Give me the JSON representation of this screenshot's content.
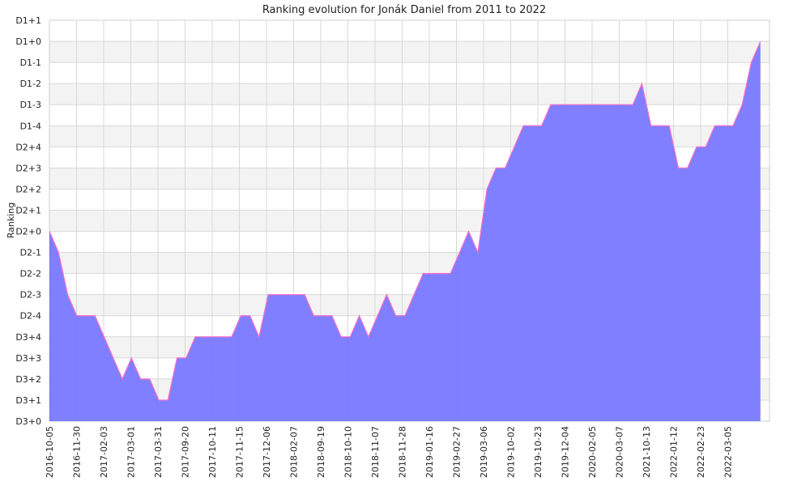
{
  "chart_data": {
    "type": "area",
    "title": "Ranking evolution for Jonák Daniel from 2011 to 2022",
    "xlabel": "",
    "ylabel": "Ranking",
    "y_levels": [
      "D3+0",
      "D3+1",
      "D3+2",
      "D3+3",
      "D3+4",
      "D2-4",
      "D2-3",
      "D2-2",
      "D2-1",
      "D2+0",
      "D2+1",
      "D2+2",
      "D2+3",
      "D2+4",
      "D1-4",
      "D1-3",
      "D1-2",
      "D1-1",
      "D1+0",
      "D1+1"
    ],
    "x_ticks": [
      "2016-10-05",
      "2016-11-30",
      "2017-02-03",
      "2017-03-01",
      "2017-03-31",
      "2017-09-20",
      "2017-10-11",
      "2017-11-15",
      "2017-12-06",
      "2018-02-07",
      "2018-09-19",
      "2018-10-10",
      "2018-11-07",
      "2018-11-28",
      "2019-01-16",
      "2019-02-27",
      "2019-03-06",
      "2019-10-02",
      "2019-10-23",
      "2019-12-04",
      "2020-02-05",
      "2020-03-07",
      "2021-10-13",
      "2022-01-12",
      "2022-02-23",
      "2022-03-05"
    ],
    "x_range": [
      0,
      79
    ],
    "grid": true,
    "legend": "none",
    "fill_color": "#7878ff",
    "line_color": "#ff6ec7",
    "points": [
      {
        "x": 0,
        "y": 9
      },
      {
        "x": 1,
        "y": 8
      },
      {
        "x": 2,
        "y": 6
      },
      {
        "x": 3,
        "y": 5
      },
      {
        "x": 4,
        "y": 5
      },
      {
        "x": 5,
        "y": 5
      },
      {
        "x": 6,
        "y": 4
      },
      {
        "x": 7,
        "y": 3
      },
      {
        "x": 8,
        "y": 2
      },
      {
        "x": 9,
        "y": 3
      },
      {
        "x": 10,
        "y": 2
      },
      {
        "x": 11,
        "y": 2
      },
      {
        "x": 12,
        "y": 1
      },
      {
        "x": 13,
        "y": 1
      },
      {
        "x": 14,
        "y": 3
      },
      {
        "x": 15,
        "y": 3
      },
      {
        "x": 16,
        "y": 4
      },
      {
        "x": 17,
        "y": 4
      },
      {
        "x": 18,
        "y": 4
      },
      {
        "x": 19,
        "y": 4
      },
      {
        "x": 20,
        "y": 4
      },
      {
        "x": 21,
        "y": 5
      },
      {
        "x": 22,
        "y": 5
      },
      {
        "x": 23,
        "y": 4
      },
      {
        "x": 24,
        "y": 6
      },
      {
        "x": 25,
        "y": 6
      },
      {
        "x": 26,
        "y": 6
      },
      {
        "x": 27,
        "y": 6
      },
      {
        "x": 28,
        "y": 6
      },
      {
        "x": 29,
        "y": 5
      },
      {
        "x": 30,
        "y": 5
      },
      {
        "x": 31,
        "y": 5
      },
      {
        "x": 32,
        "y": 4
      },
      {
        "x": 33,
        "y": 4
      },
      {
        "x": 34,
        "y": 5
      },
      {
        "x": 35,
        "y": 4
      },
      {
        "x": 36,
        "y": 5
      },
      {
        "x": 37,
        "y": 6
      },
      {
        "x": 38,
        "y": 5
      },
      {
        "x": 39,
        "y": 5
      },
      {
        "x": 40,
        "y": 6
      },
      {
        "x": 41,
        "y": 7
      },
      {
        "x": 42,
        "y": 7
      },
      {
        "x": 43,
        "y": 7
      },
      {
        "x": 44,
        "y": 7
      },
      {
        "x": 45,
        "y": 8
      },
      {
        "x": 46,
        "y": 9
      },
      {
        "x": 47,
        "y": 8
      },
      {
        "x": 48,
        "y": 11
      },
      {
        "x": 49,
        "y": 12
      },
      {
        "x": 50,
        "y": 12
      },
      {
        "x": 51,
        "y": 13
      },
      {
        "x": 52,
        "y": 14
      },
      {
        "x": 53,
        "y": 14
      },
      {
        "x": 54,
        "y": 14
      },
      {
        "x": 55,
        "y": 15
      },
      {
        "x": 56,
        "y": 15
      },
      {
        "x": 57,
        "y": 15
      },
      {
        "x": 58,
        "y": 15
      },
      {
        "x": 59,
        "y": 15
      },
      {
        "x": 60,
        "y": 15
      },
      {
        "x": 61,
        "y": 15
      },
      {
        "x": 62,
        "y": 15
      },
      {
        "x": 63,
        "y": 15
      },
      {
        "x": 64,
        "y": 15
      },
      {
        "x": 65,
        "y": 16
      },
      {
        "x": 66,
        "y": 14
      },
      {
        "x": 67,
        "y": 14
      },
      {
        "x": 68,
        "y": 14
      },
      {
        "x": 69,
        "y": 12
      },
      {
        "x": 70,
        "y": 12
      },
      {
        "x": 71,
        "y": 13
      },
      {
        "x": 72,
        "y": 13
      },
      {
        "x": 73,
        "y": 14
      },
      {
        "x": 74,
        "y": 14
      },
      {
        "x": 75,
        "y": 14
      },
      {
        "x": 76,
        "y": 15
      },
      {
        "x": 77,
        "y": 17
      },
      {
        "x": 78,
        "y": 18
      }
    ]
  }
}
